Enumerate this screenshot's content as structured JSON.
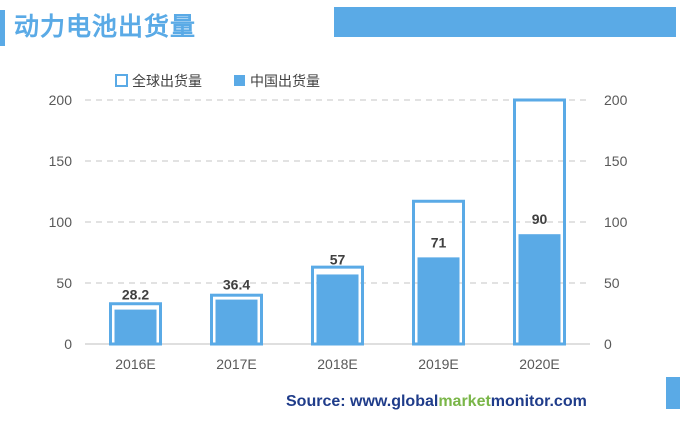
{
  "page": {
    "title": "动力电池出货量",
    "accent_color": "#5aaae6",
    "title_color": "#5aaae6",
    "header_bar_color": "#5aaae6",
    "side_tab_color": "#5aaae6"
  },
  "source": {
    "prefix": "Source: www.",
    "word1": "global",
    "word2": "market",
    "word3": "monitor",
    "suffix": ".com",
    "colors": {
      "default": "#1f3c8a",
      "word1": "#1f3c8a",
      "word2": "#7ab648",
      "word3": "#1f3c8a"
    }
  },
  "chart_data": {
    "type": "bar",
    "title": "",
    "categories": [
      "2016E",
      "2017E",
      "2018E",
      "2019E",
      "2020E"
    ],
    "series": [
      {
        "name": "全球出货量",
        "values": [
          33,
          40,
          63,
          117,
          200
        ],
        "style": "outline",
        "color": "#5aaae6"
      },
      {
        "name": "中国出货量",
        "values": [
          28.2,
          36.4,
          57,
          71,
          90
        ],
        "style": "filled",
        "color": "#5aaae6",
        "labels": [
          "28.2",
          "36.4",
          "57",
          "71",
          "90"
        ]
      }
    ],
    "ylim": [
      0,
      200
    ],
    "yticks": [
      "0",
      "50",
      "100",
      "150",
      "200"
    ],
    "secondary_yaxis": true,
    "grid": "dashed",
    "legend": "top-left",
    "xlabel": "",
    "ylabel": ""
  }
}
